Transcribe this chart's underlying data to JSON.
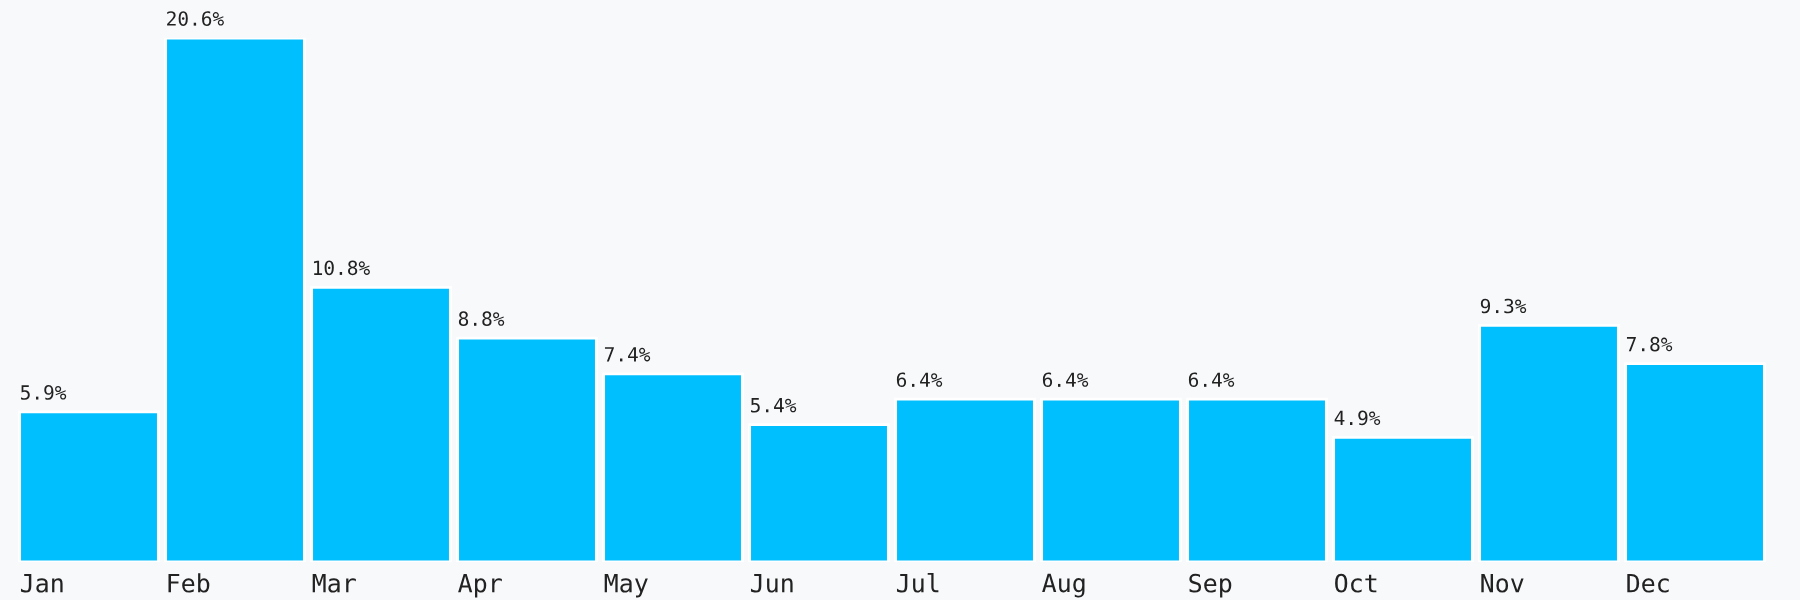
{
  "chart_data": {
    "type": "bar",
    "categories": [
      "Jan",
      "Feb",
      "Mar",
      "Apr",
      "May",
      "Jun",
      "Jul",
      "Aug",
      "Sep",
      "Oct",
      "Nov",
      "Dec"
    ],
    "values": [
      5.9,
      20.6,
      10.8,
      8.8,
      7.4,
      5.4,
      6.4,
      6.4,
      6.4,
      4.9,
      9.3,
      7.8
    ],
    "value_labels": [
      "5.9%",
      "20.6%",
      "10.8%",
      "8.8%",
      "7.4%",
      "5.4%",
      "6.4%",
      "6.4%",
      "6.4%",
      "4.9%",
      "9.3%",
      "7.8%"
    ],
    "color": "#00bfff",
    "grid": false,
    "legend": false
  }
}
